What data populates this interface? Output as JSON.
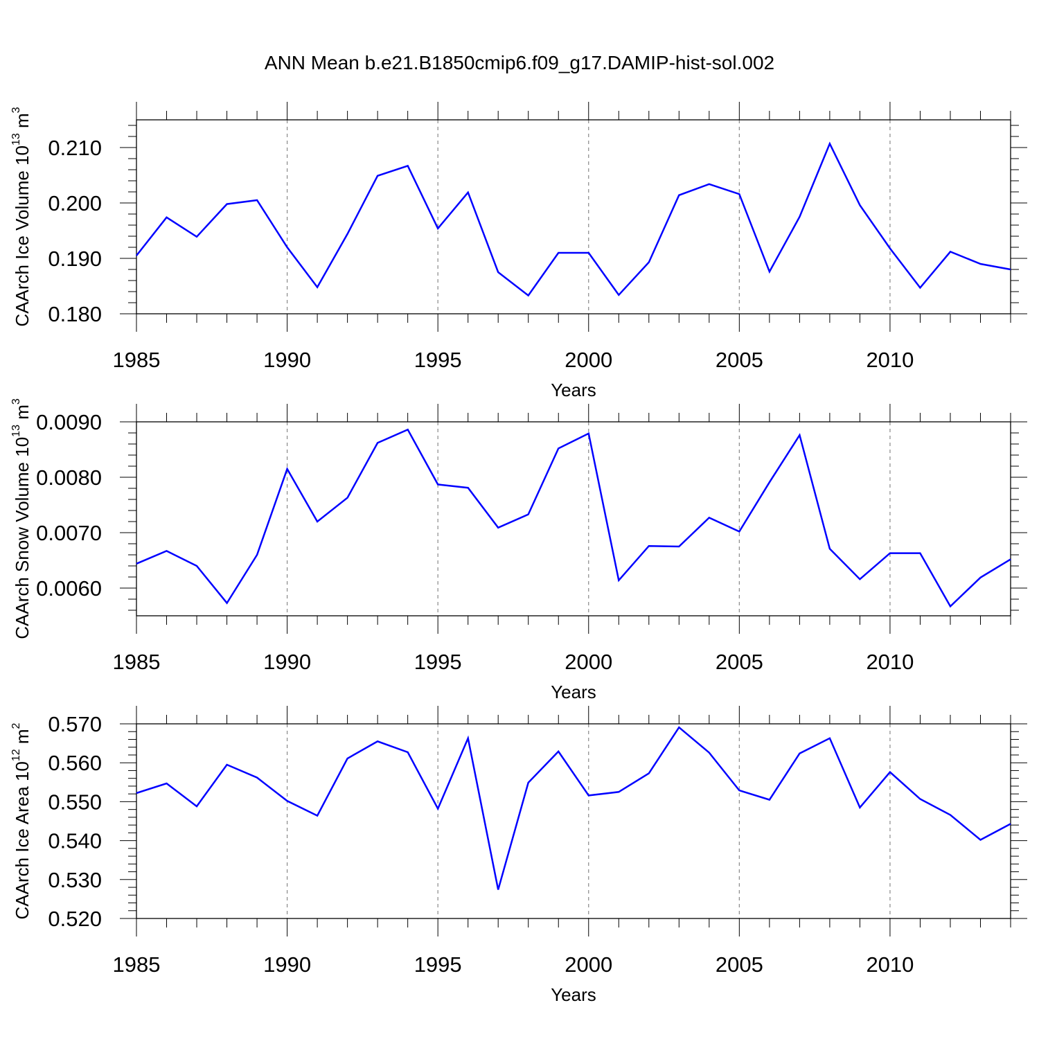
{
  "title": "ANN Mean b.e21.B1850cmip6.f09_g17.DAMIP-hist-sol.002",
  "chart_data": [
    {
      "type": "line",
      "ylabel": "CAArch Ice Volume 10",
      "ylabel_exp": "13",
      "ylabel_unit": " m",
      "ylabel_unit_exp": "3",
      "xlabel": "Years",
      "xlim": [
        1985,
        2014
      ],
      "ylim": [
        0.18,
        0.215
      ],
      "xticks": [
        1985,
        1990,
        1995,
        2000,
        2005,
        2010
      ],
      "xtick_labels": [
        "1985",
        "1990",
        "1995",
        "2000",
        "2005",
        "2010"
      ],
      "yticks": [
        0.18,
        0.19,
        0.2,
        0.21
      ],
      "ytick_labels": [
        "0.180",
        "0.190",
        "0.200",
        "0.210"
      ],
      "grid": "dashed vertical at major x ticks",
      "color": "#0000ff",
      "x": [
        1985,
        1986,
        1987,
        1988,
        1989,
        1990,
        1991,
        1992,
        1993,
        1994,
        1995,
        1996,
        1997,
        1998,
        1999,
        2000,
        2001,
        2002,
        2003,
        2004,
        2005,
        2006,
        2007,
        2008,
        2009,
        2010,
        2011,
        2012,
        2013,
        2014
      ],
      "values": [
        0.1905,
        0.1974,
        0.1939,
        0.1998,
        0.2005,
        0.192,
        0.1848,
        0.1944,
        0.2049,
        0.2067,
        0.1954,
        0.2019,
        0.1875,
        0.1833,
        0.191,
        0.191,
        0.1834,
        0.1893,
        0.2014,
        0.2034,
        0.2016,
        0.1876,
        0.1975,
        0.2107,
        0.1996,
        0.1918,
        0.1847,
        0.1912,
        0.189,
        0.188
      ]
    },
    {
      "type": "line",
      "ylabel": "CAArch Snow Volume 10",
      "ylabel_exp": "13",
      "ylabel_unit": " m",
      "ylabel_unit_exp": "3",
      "xlabel": "Years",
      "xlim": [
        1985,
        2014
      ],
      "ylim": [
        0.0055,
        0.009
      ],
      "xticks": [
        1985,
        1990,
        1995,
        2000,
        2005,
        2010
      ],
      "xtick_labels": [
        "1985",
        "1990",
        "1995",
        "2000",
        "2005",
        "2010"
      ],
      "yticks": [
        0.006,
        0.007,
        0.008,
        0.009
      ],
      "ytick_labels": [
        "0.0060",
        "0.0070",
        "0.0080",
        "0.0090"
      ],
      "grid": "dashed vertical at major x ticks",
      "color": "#0000ff",
      "x": [
        1985,
        1986,
        1987,
        1988,
        1989,
        1990,
        1991,
        1992,
        1993,
        1994,
        1995,
        1996,
        1997,
        1998,
        1999,
        2000,
        2001,
        2002,
        2003,
        2004,
        2005,
        2006,
        2007,
        2008,
        2009,
        2010,
        2011,
        2012,
        2013,
        2014
      ],
      "values": [
        0.00644,
        0.00667,
        0.0064,
        0.00573,
        0.0066,
        0.00815,
        0.0072,
        0.00763,
        0.00862,
        0.00886,
        0.00787,
        0.00781,
        0.00709,
        0.00733,
        0.00852,
        0.00879,
        0.00614,
        0.00676,
        0.00675,
        0.00727,
        0.00702,
        0.00791,
        0.00876,
        0.00671,
        0.00616,
        0.00663,
        0.00663,
        0.00567,
        0.00619,
        0.00652
      ]
    },
    {
      "type": "line",
      "ylabel": "CAArch Ice Area 10",
      "ylabel_exp": "12",
      "ylabel_unit": " m",
      "ylabel_unit_exp": "2",
      "xlabel": "Years",
      "xlim": [
        1985,
        2014
      ],
      "ylim": [
        0.52,
        0.57
      ],
      "xticks": [
        1985,
        1990,
        1995,
        2000,
        2005,
        2010
      ],
      "xtick_labels": [
        "1985",
        "1990",
        "1995",
        "2000",
        "2005",
        "2010"
      ],
      "yticks": [
        0.52,
        0.53,
        0.54,
        0.55,
        0.56,
        0.57
      ],
      "ytick_labels": [
        "0.520",
        "0.530",
        "0.540",
        "0.550",
        "0.560",
        "0.570"
      ],
      "grid": "dashed vertical at major x ticks",
      "color": "#0000ff",
      "x": [
        1985,
        1986,
        1987,
        1988,
        1989,
        1990,
        1991,
        1992,
        1993,
        1994,
        1995,
        1996,
        1997,
        1998,
        1999,
        2000,
        2001,
        2002,
        2003,
        2004,
        2005,
        2006,
        2007,
        2008,
        2009,
        2010,
        2011,
        2012,
        2013,
        2014
      ],
      "values": [
        0.5522,
        0.5547,
        0.5488,
        0.5595,
        0.5562,
        0.5502,
        0.5464,
        0.5611,
        0.5655,
        0.5627,
        0.5482,
        0.5663,
        0.5274,
        0.5549,
        0.5629,
        0.5516,
        0.5525,
        0.5573,
        0.5691,
        0.5626,
        0.5529,
        0.5505,
        0.5624,
        0.5663,
        0.5485,
        0.5576,
        0.5507,
        0.5466,
        0.5402,
        0.5443
      ]
    }
  ]
}
